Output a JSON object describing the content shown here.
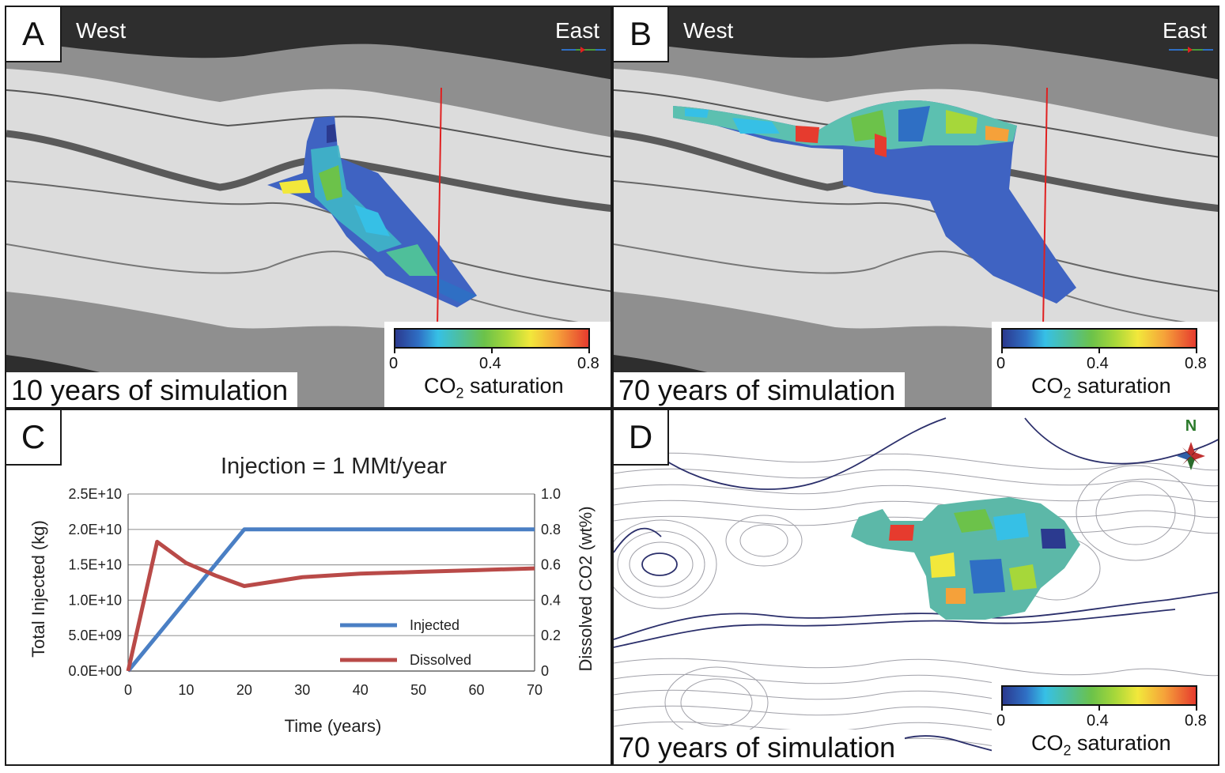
{
  "panels": {
    "a": {
      "label": "A",
      "west": "West",
      "east": "East",
      "caption": "10 years of simulation"
    },
    "b": {
      "label": "B",
      "west": "West",
      "east": "East",
      "caption": "70 years of simulation"
    },
    "c": {
      "label": "C"
    },
    "d": {
      "label": "D",
      "north": "N",
      "caption": "70 years of simulation"
    }
  },
  "colorbar": {
    "ticks": [
      "0",
      "0.4",
      "0.8"
    ],
    "title_main": "CO",
    "title_sub": "2",
    "title_rest": " saturation"
  },
  "colors": {
    "injected": "#4a7fc4",
    "dissolved": "#b94a48",
    "dark_layer": "#3a3a3a",
    "mid_layer": "#8c8c8c",
    "light_layer": "#dcdcdc",
    "well": "#e02020"
  },
  "chart_data": {
    "type": "line",
    "title": "Injection = 1 MMt/year",
    "xlabel": "Time (years)",
    "ylabel": "Total Injected (kg)",
    "y2label": "Dissolved CO2 (wt%)",
    "xlim": [
      0,
      70
    ],
    "ylim": [
      0,
      25000000000
    ],
    "y2lim": [
      0,
      1.0
    ],
    "xticks": [
      "0",
      "10",
      "20",
      "30",
      "40",
      "50",
      "60",
      "70"
    ],
    "yticks": [
      "0.0E+00",
      "5.0E+09",
      "1.0E+10",
      "1.5E+10",
      "2.0E+10",
      "2.5E+10"
    ],
    "y2ticks": [
      "0",
      "0.2",
      "0.4",
      "0.6",
      "0.8",
      "1.0"
    ],
    "grid": true,
    "legend_position": "lower-right",
    "series": [
      {
        "name": "Injected",
        "axis": "left",
        "x": [
          0,
          20,
          30,
          40,
          50,
          60,
          70
        ],
        "values": [
          0,
          20000000000,
          20000000000,
          20000000000,
          20000000000,
          20000000000,
          20000000000
        ]
      },
      {
        "name": "Dissolved",
        "axis": "right",
        "x": [
          0,
          5,
          10,
          15,
          20,
          30,
          40,
          50,
          60,
          70
        ],
        "values": [
          0,
          0.73,
          0.61,
          0.54,
          0.48,
          0.53,
          0.55,
          0.56,
          0.57,
          0.58
        ]
      }
    ]
  }
}
